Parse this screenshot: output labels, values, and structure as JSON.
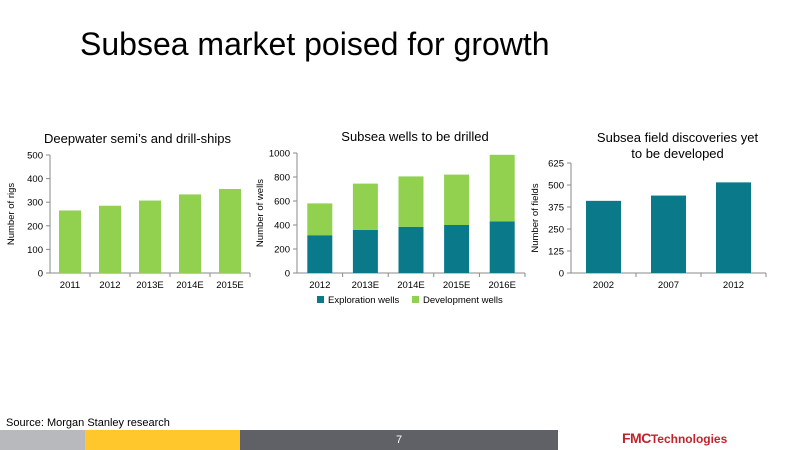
{
  "slide": {
    "title": "Subsea market poised for growth",
    "source": "Source:  Morgan Stanley research",
    "page_number": "7",
    "logo_brand": "FMC",
    "logo_text": "Technologies"
  },
  "colors": {
    "light_green": "#92D050",
    "teal": "#0A7A8A",
    "axis": "#888888",
    "footer_gray": "#B7B9BD",
    "footer_yellow": "#FFC72C",
    "footer_dark": "#5F6166",
    "logo_red": "#C0242B"
  },
  "chart_data": [
    {
      "type": "bar",
      "title": "Deepwater semi’s and drill-ships",
      "ylabel": "Number of rigs",
      "xlabel": "",
      "categories": [
        "2011",
        "2012",
        "2013E",
        "2014E",
        "2015E"
      ],
      "values": [
        265,
        285,
        307,
        333,
        356
      ],
      "ylim": [
        0,
        500
      ],
      "yticks": [
        0,
        100,
        200,
        300,
        400,
        500
      ],
      "color": "#92D050"
    },
    {
      "type": "bar",
      "stacked": true,
      "title": "Subsea wells to be drilled",
      "ylabel": "Number of wells",
      "xlabel": "",
      "categories": [
        "2012",
        "2013E",
        "2014E",
        "2015E",
        "2016E"
      ],
      "series": [
        {
          "name": "Exploration wells",
          "values": [
            315,
            360,
            385,
            400,
            430
          ],
          "color": "#0A7A8A"
        },
        {
          "name": "Development wells",
          "values": [
            265,
            385,
            420,
            420,
            555
          ],
          "color": "#92D050"
        }
      ],
      "ylim": [
        0,
        1000
      ],
      "yticks": [
        0,
        200,
        400,
        600,
        800,
        1000
      ],
      "legend": "bottom"
    },
    {
      "type": "bar",
      "title": "Subsea field discoveries yet to be developed",
      "ylabel": "Number of fields",
      "xlabel": "",
      "categories": [
        "2002",
        "2007",
        "2012"
      ],
      "values": [
        410,
        440,
        515
      ],
      "ylim": [
        0,
        625
      ],
      "yticks": [
        0,
        125,
        250,
        375,
        500,
        625
      ],
      "color": "#0A7A8A"
    }
  ]
}
